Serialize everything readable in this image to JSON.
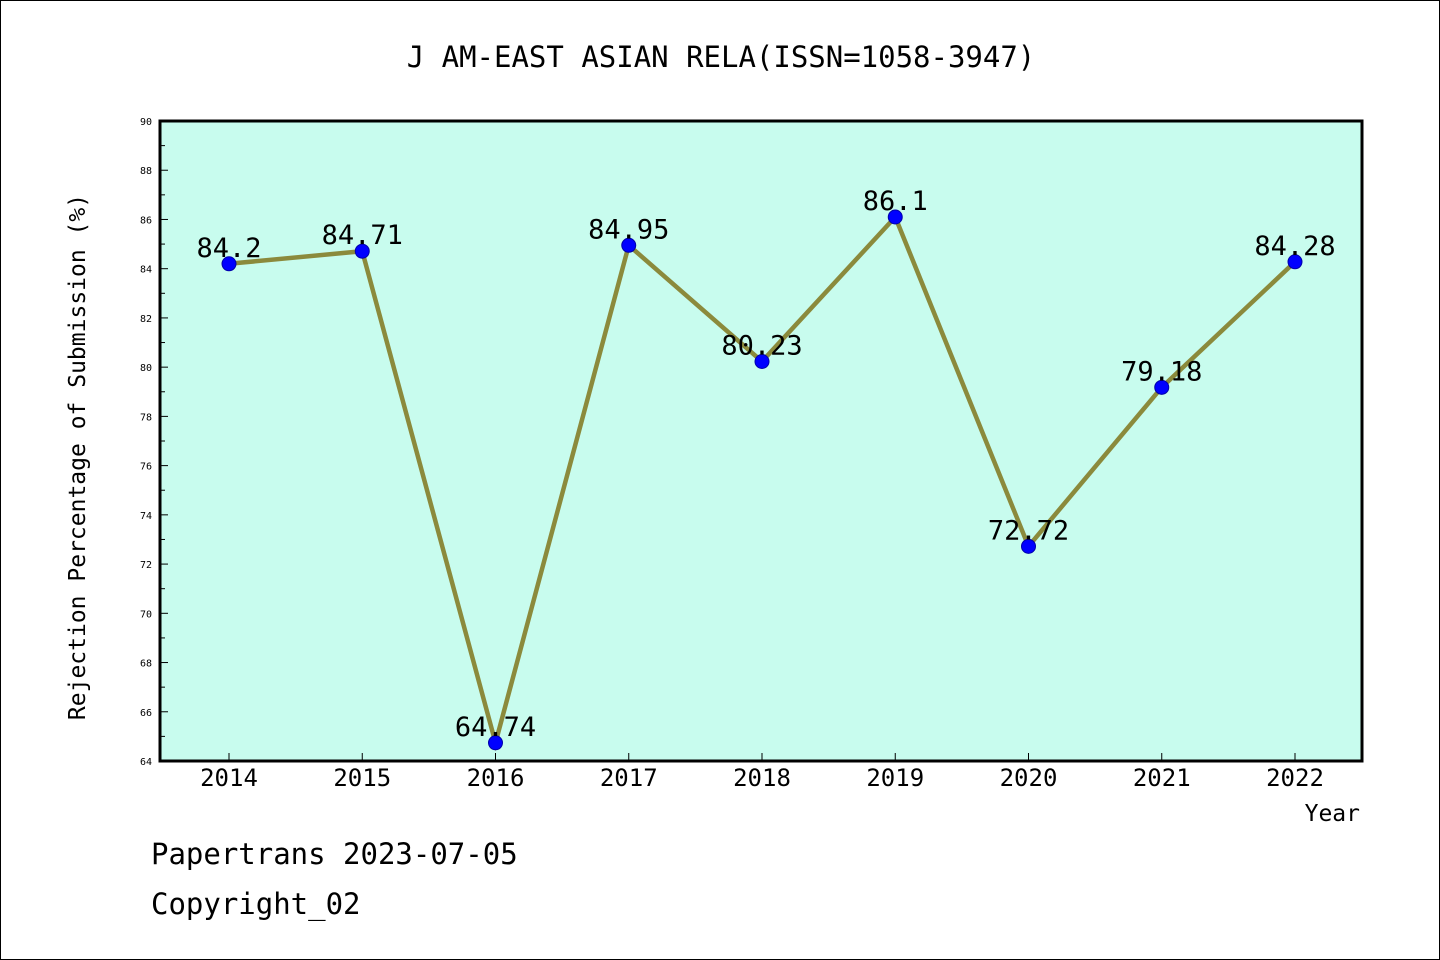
{
  "chart_data": {
    "type": "line",
    "title": "J AM-EAST ASIAN RELA(ISSN=1058-3947)",
    "xlabel": "Year",
    "ylabel": "Rejection Percentage of Submission (%)",
    "ylim": [
      64,
      90
    ],
    "yticks": [
      "64",
      "66",
      "68",
      "70",
      "72",
      "74",
      "76",
      "78",
      "80",
      "82",
      "84",
      "86",
      "88",
      "90"
    ],
    "categories": [
      "2014",
      "2015",
      "2016",
      "2017",
      "2018",
      "2019",
      "2020",
      "2021",
      "2022"
    ],
    "values": [
      84.2,
      84.71,
      64.74,
      84.95,
      80.23,
      86.1,
      72.72,
      79.18,
      84.28
    ],
    "data_labels": [
      "84.2",
      "84.71",
      "64.74",
      "84.95",
      "80.23",
      "86.1",
      "72.72",
      "79.18",
      "84.28"
    ],
    "grid": false,
    "colors": {
      "plot_background": "#c8fcee",
      "line": "#8b8a3c",
      "marker": "#0000ff"
    }
  },
  "footer": {
    "line1": "Papertrans 2023-07-05",
    "line2": "Copyright_02"
  }
}
